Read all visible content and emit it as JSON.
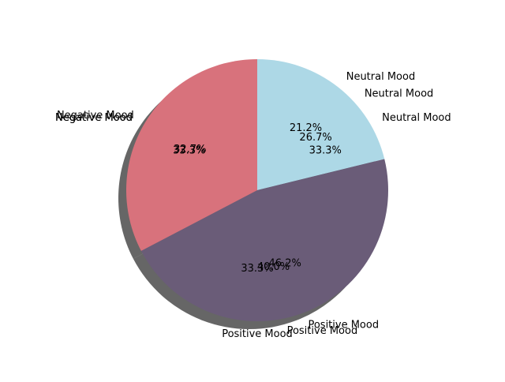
{
  "chart_data": {
    "type": "pie",
    "title": "",
    "shadow": true,
    "layers": [
      {
        "name": "",
        "slices": [
          {
            "label": "Neutral Mood",
            "value": 21.2,
            "pct_label": "21.2%",
            "color": "#add8e6"
          },
          {
            "label": "Positive Mood",
            "value": 46.2,
            "pct_label": "46.2%",
            "color": "#6a5c78"
          },
          {
            "label": "Negative Mood",
            "value": 32.7,
            "pct_label": "32.7%",
            "color": "#d8727c"
          }
        ]
      },
      {
        "name": "",
        "slices": [
          {
            "label": "Neutral Mood",
            "value": 26.7,
            "pct_label": "26.7%",
            "color": "#add8e6"
          },
          {
            "label": "Positive Mood",
            "value": 40.0,
            "pct_label": "40.0%",
            "color": "#6a5c78"
          },
          {
            "label": "Negative Mood",
            "value": 33.3,
            "pct_label": "33.3%",
            "color": "#d8727c"
          }
        ]
      },
      {
        "name": "",
        "slices": [
          {
            "label": "Neutral Mood",
            "value": 33.3,
            "pct_label": "33.3%",
            "color": "#add8e6"
          },
          {
            "label": "Positive Mood",
            "value": 33.3,
            "pct_label": "33.3%",
            "color": "#6a5c78"
          },
          {
            "label": "Negative Mood",
            "value": 33.3,
            "pct_label": "33.3%",
            "color": "#d8727c"
          }
        ]
      }
    ],
    "visible_fill_layer": 0,
    "start_angle_deg": 90,
    "direction": "clockwise"
  }
}
